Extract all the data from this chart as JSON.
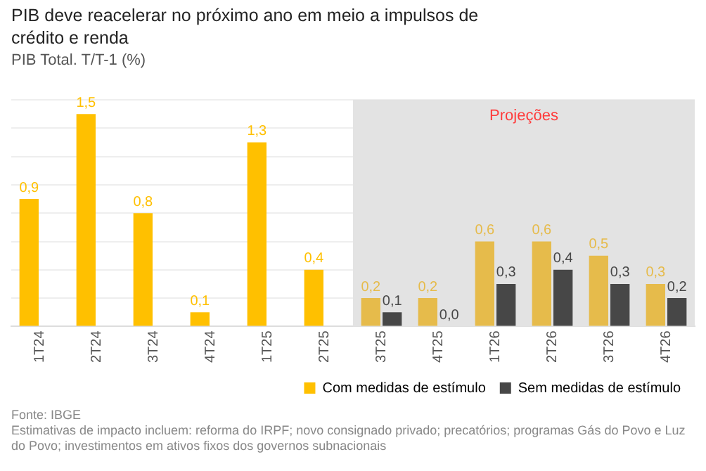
{
  "chart_data": {
    "type": "bar",
    "title": "PIB deve reacelerar no próximo ano em meio a impulsos de crédito e renda",
    "subtitle": "PIB Total. T/T-1 (%)",
    "categories": [
      "1T24",
      "2T24",
      "3T24",
      "4T24",
      "1T25",
      "2T25",
      "3T25",
      "4T25",
      "1T26",
      "2T26",
      "3T26",
      "4T26"
    ],
    "series": [
      {
        "name": "Com medidas de estímulo",
        "color": "#ffc000",
        "colors": [
          "#ffc000",
          "#ffc000",
          "#ffc000",
          "#ffc000",
          "#ffc000",
          "#ffc000",
          "#e6bb4b",
          "#e6bb4b",
          "#e6bb4b",
          "#e6bb4b",
          "#e6bb4b",
          "#e6bb4b"
        ],
        "values": [
          0.9,
          1.5,
          0.8,
          0.1,
          1.3,
          0.4,
          0.2,
          0.2,
          0.6,
          0.6,
          0.5,
          0.3
        ],
        "value_labels": [
          "0,9",
          "1,5",
          "0,8",
          "0,1",
          "1,3",
          "0,4",
          "0,2",
          "0,2",
          "0,6",
          "0,6",
          "0,5",
          "0,3"
        ]
      },
      {
        "name": "Sem medidas de estímulo",
        "color": "#474747",
        "values": [
          null,
          null,
          null,
          null,
          null,
          null,
          0.1,
          0.0,
          0.3,
          0.4,
          0.3,
          0.2
        ],
        "value_labels": [
          null,
          null,
          null,
          null,
          null,
          null,
          "0,1",
          "0,0",
          "0,3",
          "0,4",
          "0,3",
          "0,2"
        ]
      }
    ],
    "tick_labels": "x",
    "grid": "y",
    "legend": "bottom",
    "bands": [
      {
        "axis": "x",
        "from": "3T25",
        "to": "4T26",
        "label": "Projeções",
        "color": "#e3e3e3"
      }
    ],
    "annotations": [
      "Fonte: IBGE",
      "Estimativas de impacto incluem: reforma do IRPF; novo consignado privado; precatórios; programas Gás do Povo e Luz do Povo; investimentos em ativos fixos dos governos subnacionais"
    ]
  }
}
